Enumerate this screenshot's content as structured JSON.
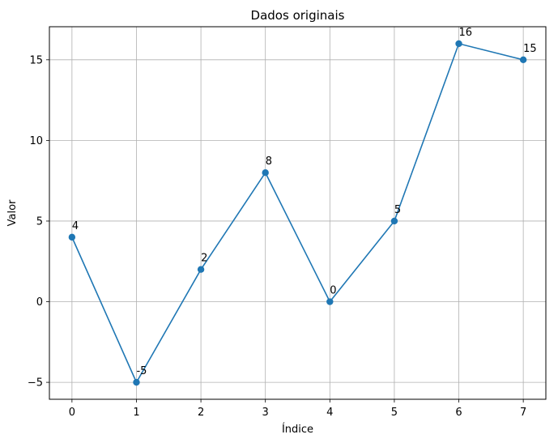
{
  "chart_data": {
    "type": "line",
    "title": "Dados originais",
    "xlabel": "Índice",
    "ylabel": "Valor",
    "x": [
      0,
      1,
      2,
      3,
      4,
      5,
      6,
      7
    ],
    "y": [
      4,
      -5,
      2,
      8,
      0,
      5,
      16,
      15
    ],
    "point_labels": [
      "4",
      "-5",
      "2",
      "8",
      "0",
      "5",
      "16",
      "15"
    ],
    "xlim": [
      -0.35,
      7.35
    ],
    "ylim": [
      -6.05,
      17.05
    ],
    "xticks": [
      0,
      1,
      2,
      3,
      4,
      5,
      6,
      7
    ],
    "xtick_labels": [
      "0",
      "1",
      "2",
      "3",
      "4",
      "5",
      "6",
      "7"
    ],
    "yticks": [
      -5,
      0,
      5,
      10,
      15
    ],
    "ytick_labels": [
      "−5",
      "0",
      "5",
      "10",
      "15"
    ],
    "grid": true,
    "marker": "circle",
    "colors": {
      "line": "#1f77b4",
      "grid": "#b0b0b0",
      "axes": "#000000"
    }
  }
}
